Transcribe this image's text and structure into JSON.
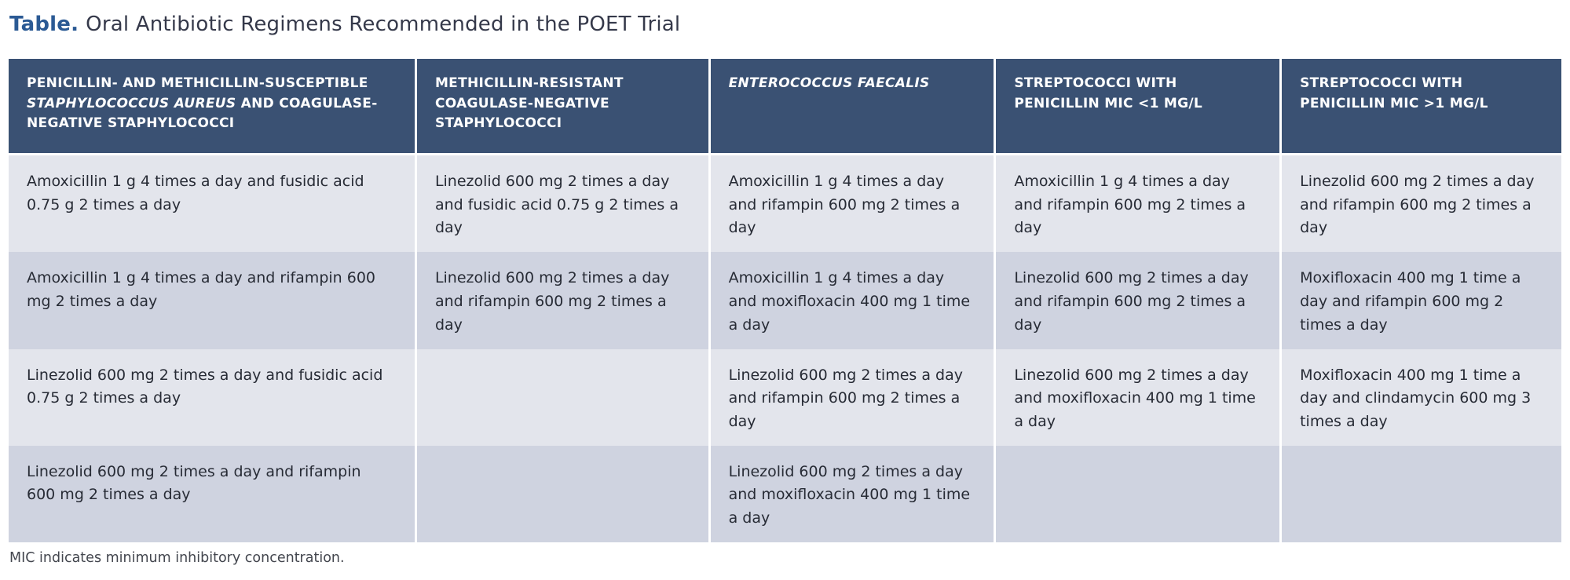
{
  "title": {
    "label": "Table.",
    "text": "Oral Antibiotic Regimens Recommended in the POET Trial"
  },
  "footnote": "MIC indicates minimum inhibitory concentration.",
  "colors": {
    "header_bg": "#3A5173",
    "header_text": "#FFFFFF",
    "row_light": "#E3E5EC",
    "row_dark": "#CFD3E0",
    "title_accent": "#2B5A94",
    "title_text": "#35394A",
    "body_text": "#272B35",
    "footnote_text": "#43464E"
  },
  "table": {
    "headers": [
      {
        "segments": [
          {
            "text": "PENICILLIN- AND METHICILLIN-SUSCEPTIBLE ",
            "italic": false
          },
          {
            "text": "STAPHYLOCOCCUS AUREUS",
            "italic": true
          },
          {
            "text": " AND COAGULASE-NEGATIVE STAPHYLOCOCCI",
            "italic": false
          }
        ]
      },
      {
        "segments": [
          {
            "text": "METHICILLIN-RESISTANT COAGULASE-NEGATIVE STAPHYLOCOCCI",
            "italic": false
          }
        ]
      },
      {
        "segments": [
          {
            "text": "ENTEROCOCCUS FAECALIS",
            "italic": true
          }
        ]
      },
      {
        "segments": [
          {
            "text": "STREPTOCOCCI WITH",
            "italic": false
          },
          {
            "text": "PENICILLIN MIC <1 MG/L",
            "italic": false
          }
        ]
      },
      {
        "segments": [
          {
            "text": "STREPTOCOCCI WITH",
            "italic": false
          },
          {
            "text": "PENICILLIN MIC >1 MG/L",
            "italic": false
          }
        ]
      }
    ],
    "rows": [
      {
        "cells": [
          "Amoxicillin 1 g 4 times a day and fusidic acid 0.75 g 2 times a day",
          "Linezolid 600 mg 2 times a day and fusidic acid 0.75 g 2 times a day",
          "Amoxicillin 1 g 4 times a day and rifampin 600 mg 2 times a day",
          "Amoxicillin 1 g 4 times a day and rifampin 600 mg 2 times a day",
          "Linezolid 600 mg 2 times a day and rifampin 600 mg 2 times a day"
        ]
      },
      {
        "cells": [
          "Amoxicillin 1 g 4 times a day and rifampin 600 mg 2 times a day",
          "Linezolid 600 mg 2 times a day and rifampin 600 mg 2 times a day",
          "Amoxicillin 1 g 4 times a day and moxifloxacin 400 mg 1 time a day",
          "Linezolid 600 mg 2 times a day and rifampin 600 mg 2 times a day",
          "Moxifloxacin 400 mg 1 time a day and rifampin 600 mg 2 times a day"
        ]
      },
      {
        "cells": [
          "Linezolid 600 mg 2 times a day and fusidic acid 0.75 g 2 times a day",
          "",
          "Linezolid 600 mg 2 times a day and rifampin 600 mg 2 times a day",
          "Linezolid 600 mg 2 times a day and moxifloxacin 400 mg 1 time a day",
          "Moxifloxacin 400 mg 1 time a day and clindamycin 600 mg 3 times a day"
        ]
      },
      {
        "cells": [
          "Linezolid 600 mg 2 times a day and rifampin 600 mg 2 times a day",
          "",
          "Linezolid 600 mg 2 times a day and moxifloxacin 400 mg 1 time a day",
          "",
          ""
        ]
      }
    ]
  }
}
